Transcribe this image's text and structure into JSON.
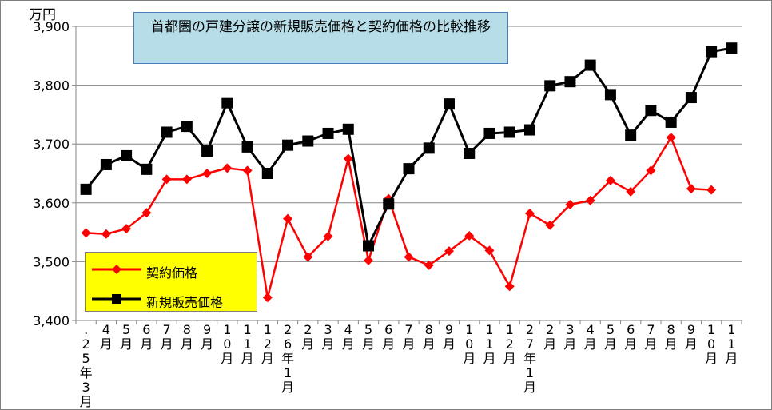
{
  "chart_data": {
    "type": "line",
    "title": "首都圏の戸建分譲の新規販売価格と契約価格の比較推移",
    "ylabel": "万円",
    "ylim": [
      3400,
      3900
    ],
    "yticks": [
      "3,400",
      "3,500",
      "3,600",
      "3,700",
      "3,800",
      "3,900"
    ],
    "categories": [
      ".25年3月",
      "4月",
      "5月",
      "6月",
      "7月",
      "8月",
      "9月",
      "10月",
      "11月",
      "12月",
      "26年1月",
      "2月",
      "3月",
      "4月",
      "5月",
      "6月",
      "7月",
      "8月",
      "9月",
      "10月",
      "11月",
      "12月",
      "27年1月",
      "2月",
      "3月",
      "4月",
      "5月",
      "6月",
      "7月",
      "8月",
      "9月",
      "10月",
      "11月"
    ],
    "series": [
      {
        "name": "契約価格",
        "color": "#ff0000",
        "marker": "diamond",
        "values": [
          3549,
          3547,
          3556,
          3583,
          3640,
          3640,
          3650,
          3659,
          3655,
          3439,
          3573,
          3508,
          3543,
          3675,
          3502,
          3607,
          3508,
          3494,
          3518,
          3544,
          3519,
          3458,
          3582,
          3562,
          3597,
          3604,
          3638,
          3619,
          3655,
          3711,
          3624,
          3622,
          null
        ]
      },
      {
        "name": "新規販売価格",
        "color": "#000000",
        "marker": "square",
        "values": [
          3623,
          3665,
          3680,
          3657,
          3720,
          3730,
          3688,
          3770,
          3695,
          3650,
          3698,
          3705,
          3718,
          3725,
          3527,
          3598,
          3658,
          3693,
          3768,
          3684,
          3718,
          3720,
          3724,
          3799,
          3806,
          3834,
          3784,
          3715,
          3757,
          3737,
          3779,
          3857,
          3863
        ]
      }
    ],
    "legend": "bottom-left",
    "grid": true
  }
}
